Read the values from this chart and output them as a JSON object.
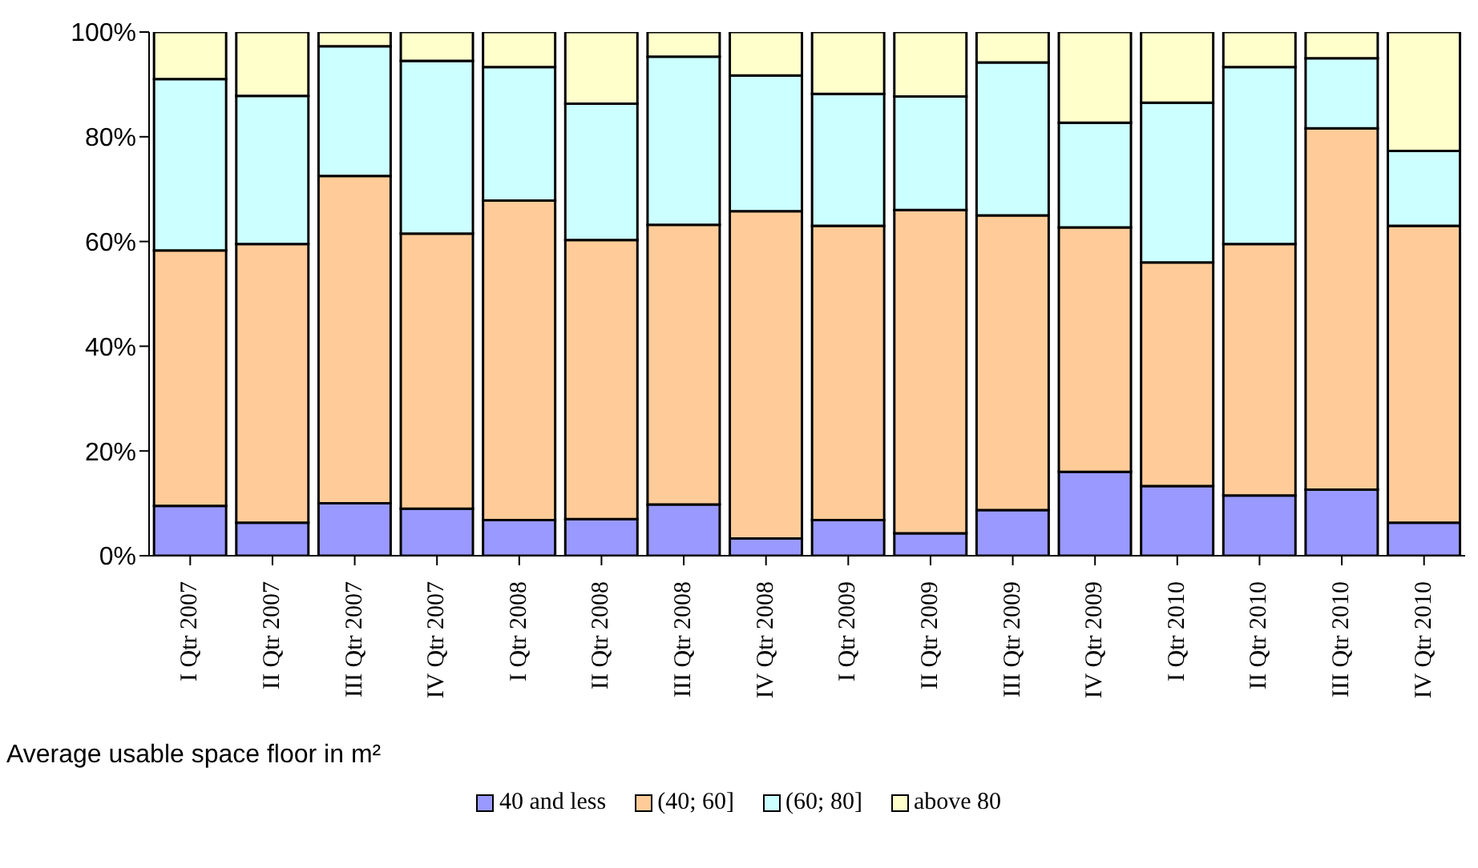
{
  "chart_data": {
    "type": "bar",
    "stacked": true,
    "legend_title": "Average usable space floor in m²",
    "legend": "bottom",
    "categories": [
      "I Qtr 2007",
      "II Qtr 2007",
      "III Qtr 2007",
      "IV Qtr 2007",
      "I Qtr 2008",
      "II Qtr 2008",
      "III Qtr 2008",
      "IV Qtr 2008",
      "I Qtr 2009",
      "II Qtr 2009",
      "III Qtr 2009",
      "IV Qtr 2009",
      "I Qtr 2010",
      "II Qtr 2010",
      "III Qtr 2010",
      "IV Qtr 2010"
    ],
    "series": [
      {
        "name": "40 and less",
        "color": "#9999ff",
        "values": [
          9.5,
          6.3,
          10,
          9,
          6.8,
          7,
          9.8,
          3.3,
          6.8,
          4.3,
          8.7,
          16,
          13.3,
          11.5,
          12.6,
          6.3
        ]
      },
      {
        "name": "(40; 60]",
        "color": "#ffcc99",
        "values": [
          48.8,
          53.2,
          62.5,
          52.5,
          61,
          53.3,
          53.4,
          62.5,
          56.2,
          61.7,
          56.3,
          46.7,
          42.7,
          48,
          69,
          56.7
        ]
      },
      {
        "name": "(60; 80]",
        "color": "#ccffff",
        "values": [
          32.7,
          28.3,
          24.8,
          33,
          25.5,
          26,
          32.1,
          25.9,
          25.2,
          21.7,
          29.2,
          20,
          30.5,
          33.8,
          13.4,
          14.3
        ]
      },
      {
        "name": "above 80",
        "color": "#ffffcc",
        "values": [
          9,
          12.2,
          2.7,
          5.5,
          6.7,
          13.7,
          4.7,
          8.3,
          11.8,
          12.3,
          5.8,
          17.3,
          13.5,
          6.7,
          5,
          22.7
        ]
      }
    ],
    "ylim": [
      0,
      100
    ],
    "yticks": [
      {
        "value": 0,
        "label": "0%"
      },
      {
        "value": 20,
        "label": "20%"
      },
      {
        "value": 40,
        "label": "40%"
      },
      {
        "value": 60,
        "label": "60%"
      },
      {
        "value": 80,
        "label": "80%"
      },
      {
        "value": 100,
        "label": "100%"
      }
    ],
    "grid": false
  }
}
